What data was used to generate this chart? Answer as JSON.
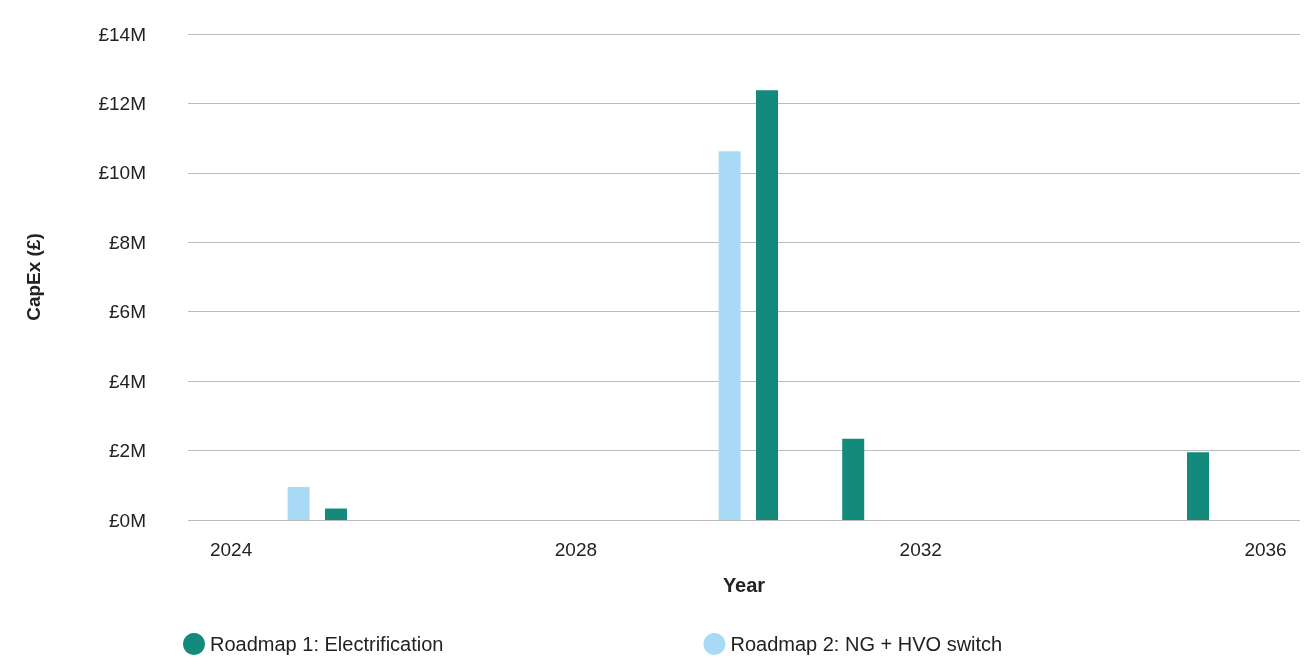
{
  "chart_data": {
    "type": "bar",
    "xlabel": "Year",
    "ylabel": "CapEx (£)",
    "x": [
      2025,
      2030,
      2031,
      2035
    ],
    "series": [
      {
        "name": "Roadmap 1: Electrification",
        "color": "#138a7c",
        "values": [
          0.33,
          12.38,
          2.34,
          1.95
        ]
      },
      {
        "name": "Roadmap 2: NG + HVO switch",
        "color": "#a8daf5",
        "values": [
          0.95,
          10.62,
          null,
          null
        ]
      }
    ],
    "xlim": [
      2023.5,
      2036.4
    ],
    "xticks": [
      2024,
      2028,
      2032,
      2036
    ],
    "ylim": [
      0,
      14
    ],
    "yticks": [
      {
        "value": 0,
        "label": "£0M"
      },
      {
        "value": 2,
        "label": "£2M"
      },
      {
        "value": 4,
        "label": "£4M"
      },
      {
        "value": 6,
        "label": "£6M"
      },
      {
        "value": 8,
        "label": "£8M"
      },
      {
        "value": 10,
        "label": "£10M"
      },
      {
        "value": 12,
        "label": "£12M"
      },
      {
        "value": 14,
        "label": "£14M"
      }
    ],
    "grid": "y",
    "legend": "bottom"
  }
}
